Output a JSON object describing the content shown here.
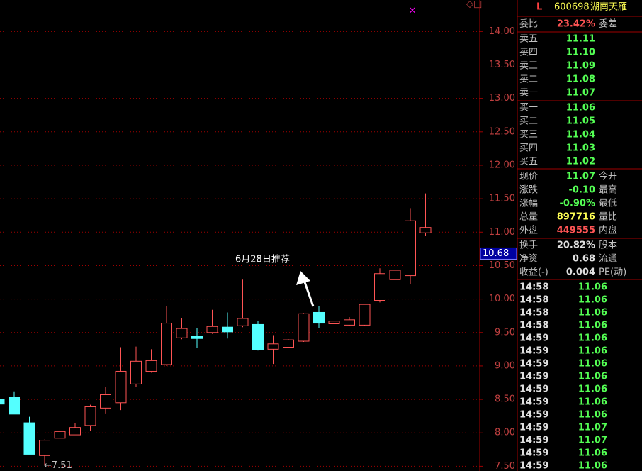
{
  "chart_data": {
    "type": "candlestick",
    "open": [
      8.5,
      8.53,
      8.15,
      7.66,
      7.92,
      7.97,
      8.11,
      8.37,
      8.45,
      8.73,
      8.92,
      9.02,
      9.42,
      9.44,
      9.5,
      9.58,
      9.6,
      9.62,
      9.25,
      9.28,
      9.37,
      9.8,
      9.63,
      9.61,
      9.61,
      9.98,
      10.29,
      10.35,
      10.99
    ],
    "high": [
      8.5,
      8.62,
      8.24,
      7.9,
      8.14,
      8.14,
      8.42,
      8.69,
      9.28,
      9.29,
      9.25,
      9.89,
      9.71,
      9.57,
      9.84,
      9.8,
      10.29,
      9.67,
      9.46,
      9.4,
      9.79,
      9.89,
      9.71,
      9.73,
      9.93,
      10.46,
      10.47,
      11.36,
      11.58
    ],
    "low": [
      8.43,
      8.28,
      7.68,
      7.51,
      7.89,
      7.97,
      8.03,
      8.29,
      8.34,
      8.69,
      8.9,
      9.0,
      9.4,
      9.27,
      9.48,
      9.41,
      9.58,
      9.23,
      9.03,
      9.27,
      9.36,
      9.57,
      9.56,
      9.6,
      9.6,
      9.95,
      10.16,
      10.22,
      10.94
    ],
    "close": [
      8.43,
      8.28,
      7.68,
      7.89,
      8.02,
      8.08,
      8.39,
      8.57,
      8.92,
      9.07,
      9.08,
      9.64,
      9.56,
      9.41,
      9.59,
      9.51,
      9.71,
      9.24,
      9.33,
      9.39,
      9.78,
      9.64,
      9.67,
      9.69,
      9.92,
      10.38,
      10.43,
      11.17,
      11.07
    ],
    "up_color": "#ff5454",
    "down_color": "#54ffff",
    "ylim": [
      7.43,
      14.47
    ],
    "yticks": [
      {
        "value": 7.5,
        "label": "7.50"
      },
      {
        "value": 8,
        "label": "8.00"
      },
      {
        "value": 8.5,
        "label": "8.50"
      },
      {
        "value": 9,
        "label": "9.00"
      },
      {
        "value": 9.5,
        "label": "9.50"
      },
      {
        "value": 10,
        "label": "10.00"
      },
      {
        "value": 10.5,
        "label": "10.50"
      },
      {
        "value": 11,
        "label": "11.00"
      },
      {
        "value": 11.5,
        "label": "11.50"
      },
      {
        "value": 12,
        "label": "12.00"
      },
      {
        "value": 12.5,
        "label": "12.50"
      },
      {
        "value": 13,
        "label": "13.00"
      },
      {
        "value": 13.5,
        "label": "13.50"
      },
      {
        "value": 14,
        "label": "14.00"
      }
    ],
    "grid": true,
    "cursor_price": 10.68,
    "low_marker": {
      "value": 7.51,
      "label": "←7.51"
    },
    "annotation": "6月28日推荐"
  },
  "quote_panel": {
    "header": {
      "flag": "L",
      "code": "600698",
      "name": "湖南天雁"
    },
    "ratio_row": [
      "委比",
      "23.42%",
      "委差"
    ],
    "asks": [
      [
        "卖五",
        "11.11"
      ],
      [
        "卖四",
        "11.10"
      ],
      [
        "卖三",
        "11.09"
      ],
      [
        "卖二",
        "11.08"
      ],
      [
        "卖一",
        "11.07"
      ]
    ],
    "bids": [
      [
        "买一",
        "11.06"
      ],
      [
        "买二",
        "11.05"
      ],
      [
        "买三",
        "11.04"
      ],
      [
        "买四",
        "11.03"
      ],
      [
        "买五",
        "11.02"
      ]
    ],
    "stats": [
      [
        "现价",
        "11.07",
        "今开"
      ],
      [
        "涨跌",
        "-0.10",
        "最高"
      ],
      [
        "涨幅",
        "-0.90%",
        "最低"
      ],
      [
        "总量",
        "897716",
        "量比"
      ],
      [
        "外盘",
        "449555",
        "内盘"
      ],
      [
        "换手",
        "20.82%",
        "股本"
      ],
      [
        "净资",
        "0.68",
        "流通"
      ],
      [
        "收益(-)",
        "0.004",
        "PE(动)"
      ]
    ],
    "ticks": [
      [
        "14:58",
        "11.06"
      ],
      [
        "14:58",
        "11.06"
      ],
      [
        "14:58",
        "11.06"
      ],
      [
        "14:58",
        "11.06"
      ],
      [
        "14:59",
        "11.06"
      ],
      [
        "14:59",
        "11.06"
      ],
      [
        "14:59",
        "11.06"
      ],
      [
        "14:59",
        "11.06"
      ],
      [
        "14:59",
        "11.06"
      ],
      [
        "14:59",
        "11.06"
      ],
      [
        "14:59",
        "11.06"
      ],
      [
        "14:59",
        "11.07"
      ],
      [
        "14:59",
        "11.07"
      ],
      [
        "14:59",
        "11.06"
      ],
      [
        "14:59",
        "11.06"
      ]
    ]
  }
}
